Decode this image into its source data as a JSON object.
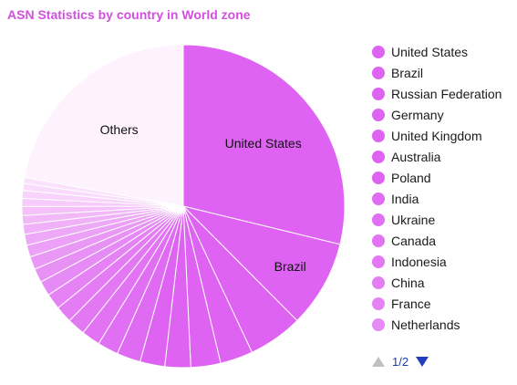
{
  "chart_data": {
    "type": "pie",
    "title": "ASN Statistics by country in World zone",
    "slices": [
      {
        "name": "United States",
        "value": 29.0,
        "color": "#df63f2",
        "label": "United States"
      },
      {
        "name": "Brazil",
        "value": 8.8,
        "color": "#df63f2",
        "label": "Brazil"
      },
      {
        "name": "Russian Federation",
        "value": 5.5,
        "color": "#df63f2",
        "label": ""
      },
      {
        "name": "Germany",
        "value": 3.3,
        "color": "#df63f2",
        "label": ""
      },
      {
        "name": "United Kingdom",
        "value": 3.0,
        "color": "#df63f2",
        "label": ""
      },
      {
        "name": "Australia",
        "value": 2.6,
        "color": "#df63f2",
        "label": ""
      },
      {
        "name": "Poland",
        "value": 2.5,
        "color": "#df63f2",
        "label": ""
      },
      {
        "name": "India",
        "value": 2.4,
        "color": "#e06bf3",
        "label": ""
      },
      {
        "name": "Ukraine",
        "value": 2.1,
        "color": "#e16ff3",
        "label": ""
      },
      {
        "name": "Canada",
        "value": 1.9,
        "color": "#e274f3",
        "label": ""
      },
      {
        "name": "Indonesia",
        "value": 1.8,
        "color": "#e378f3",
        "label": ""
      },
      {
        "name": "China",
        "value": 1.7,
        "color": "#e47df4",
        "label": ""
      },
      {
        "name": "France",
        "value": 1.6,
        "color": "#e582f4",
        "label": ""
      },
      {
        "name": "Netherlands",
        "value": 1.5,
        "color": "#e68af5",
        "label": ""
      },
      {
        "name": "",
        "value": 1.4,
        "color": "#e891f5",
        "label": ""
      },
      {
        "name": "",
        "value": 1.3,
        "color": "#ea98f6",
        "label": ""
      },
      {
        "name": "",
        "value": 1.2,
        "color": "#eca0f7",
        "label": ""
      },
      {
        "name": "",
        "value": 1.1,
        "color": "#eea8f8",
        "label": ""
      },
      {
        "name": "",
        "value": 1.0,
        "color": "#f0b1f8",
        "label": ""
      },
      {
        "name": "",
        "value": 0.9,
        "color": "#f2b9f9",
        "label": ""
      },
      {
        "name": "",
        "value": 0.9,
        "color": "#f4c1fa",
        "label": ""
      },
      {
        "name": "",
        "value": 0.8,
        "color": "#f6cafb",
        "label": ""
      },
      {
        "name": "",
        "value": 0.8,
        "color": "#f8d3fc",
        "label": ""
      },
      {
        "name": "",
        "value": 0.7,
        "color": "#f9dbfc",
        "label": ""
      },
      {
        "name": "",
        "value": 0.6,
        "color": "#fae2fd",
        "label": ""
      },
      {
        "name": "Others",
        "value": 22.3,
        "color": "#fdf2fe",
        "label": "Others"
      }
    ]
  },
  "legend": {
    "items": [
      {
        "label": "United States",
        "color": "#df63f2"
      },
      {
        "label": "Brazil",
        "color": "#df63f2"
      },
      {
        "label": "Russian Federation",
        "color": "#df63f2"
      },
      {
        "label": "Germany",
        "color": "#df63f2"
      },
      {
        "label": "United Kingdom",
        "color": "#df63f2"
      },
      {
        "label": "Australia",
        "color": "#df63f2"
      },
      {
        "label": "Poland",
        "color": "#df63f2"
      },
      {
        "label": "India",
        "color": "#e06bf3"
      },
      {
        "label": "Ukraine",
        "color": "#e16ff3"
      },
      {
        "label": "Canada",
        "color": "#e274f3"
      },
      {
        "label": "Indonesia",
        "color": "#e378f3"
      },
      {
        "label": "China",
        "color": "#e47df4"
      },
      {
        "label": "France",
        "color": "#e582f4"
      },
      {
        "label": "Netherlands",
        "color": "#e68af5"
      }
    ],
    "page": "1/2"
  },
  "colors": {
    "title": "#d34fe0",
    "pager_active": "#1f3fbf",
    "pager_disabled": "#c0c0c0"
  }
}
